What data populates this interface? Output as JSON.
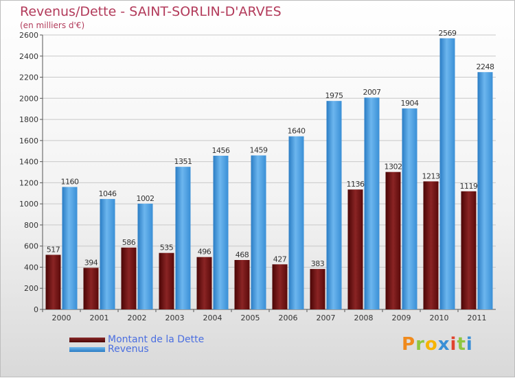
{
  "title": "Revenus/Dette - SAINT-SORLIN-D'ARVES",
  "subtitle": "(en milliers d'€)",
  "logo": {
    "text": "Proxiti"
  },
  "colors": {
    "dette": "#6b0f0f",
    "revenus": "#3a8fd6",
    "title": "#b23a5a",
    "legend_text": "#4a6ee0"
  },
  "chart_data": {
    "type": "bar",
    "title": "Revenus/Dette - SAINT-SORLIN-D'ARVES",
    "ylabel": "(en milliers d'€)",
    "xlabel": "",
    "categories": [
      "2000",
      "2001",
      "2002",
      "2003",
      "2004",
      "2005",
      "2006",
      "2007",
      "2008",
      "2009",
      "2010",
      "2011"
    ],
    "series": [
      {
        "name": "Montant de la Dette",
        "values": [
          517,
          394,
          586,
          535,
          496,
          468,
          427,
          383,
          1136,
          1302,
          1213,
          1119
        ]
      },
      {
        "name": "Revenus",
        "values": [
          1160,
          1046,
          1002,
          1351,
          1456,
          1459,
          1640,
          1975,
          2007,
          1904,
          2569,
          2248
        ]
      }
    ],
    "ylim": [
      0,
      2600
    ],
    "yticks": [
      0,
      200,
      400,
      600,
      800,
      1000,
      1200,
      1400,
      1600,
      1800,
      2000,
      2200,
      2400,
      2600
    ],
    "grid": true,
    "legend": "bottom-left"
  }
}
